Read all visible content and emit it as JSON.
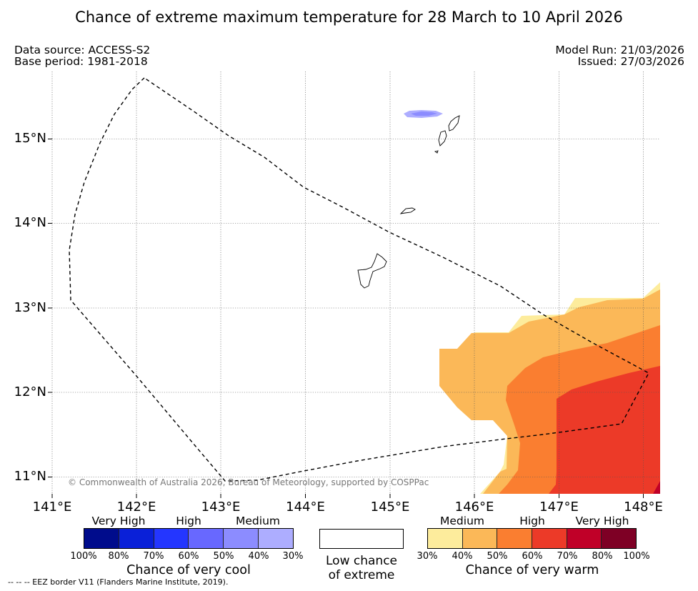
{
  "title": "Chance of extreme maximum temperature for 28 March to 10 April 2026",
  "header": {
    "data_source": "Data source: ACCESS-S2",
    "base_period": "Base period: 1981-2018",
    "model_run": "Model Run: 21/03/2026",
    "issued": "Issued: 27/03/2026"
  },
  "map": {
    "lon_ticks": [
      "141°E",
      "142°E",
      "143°E",
      "144°E",
      "145°E",
      "146°E",
      "147°E",
      "148°E"
    ],
    "lat_ticks": [
      "15°N",
      "14°N",
      "13°N",
      "12°N",
      "11°N"
    ],
    "copyright": "© Commonwealth of Australia 2026, Bureau of Meteorology, supported by COSPPac",
    "extent": {
      "lon_min": 141.0,
      "lon_max": 148.2,
      "lat_min": 10.8,
      "lat_max": 15.8
    }
  },
  "legend_cool": {
    "categories": [
      "Very High",
      "High",
      "Medium"
    ],
    "percent_labels": [
      "100%",
      "80%",
      "70%",
      "60%",
      "50%",
      "40%",
      "30%"
    ],
    "colors": [
      "#000c8c",
      "#0a20d8",
      "#2436ff",
      "#6868ff",
      "#8c8cff",
      "#adadff"
    ],
    "caption": "Chance of very cool"
  },
  "legend_low": {
    "line1": "Low chance",
    "line2": "of extreme"
  },
  "legend_warm": {
    "categories": [
      "Medium",
      "High",
      "Very High"
    ],
    "percent_labels": [
      "30%",
      "40%",
      "50%",
      "60%",
      "70%",
      "80%",
      "100%"
    ],
    "colors": [
      "#fdec9c",
      "#fbb858",
      "#fa7e30",
      "#ec3a28",
      "#c00028",
      "#7e0025"
    ],
    "caption": "Chance of very warm"
  },
  "eez_note": "-- -- -- EEZ border V11 (Flanders Marine Institute, 2019).",
  "colors": {
    "warm_30_40": "#fdec9c",
    "warm_40_50": "#fbb858",
    "warm_50_60": "#fa7e30",
    "warm_60_70": "#ec3a28",
    "warm_70_80": "#c00028",
    "cool_40_30": "#adadff",
    "cool_50_40": "#8c8cff"
  }
}
